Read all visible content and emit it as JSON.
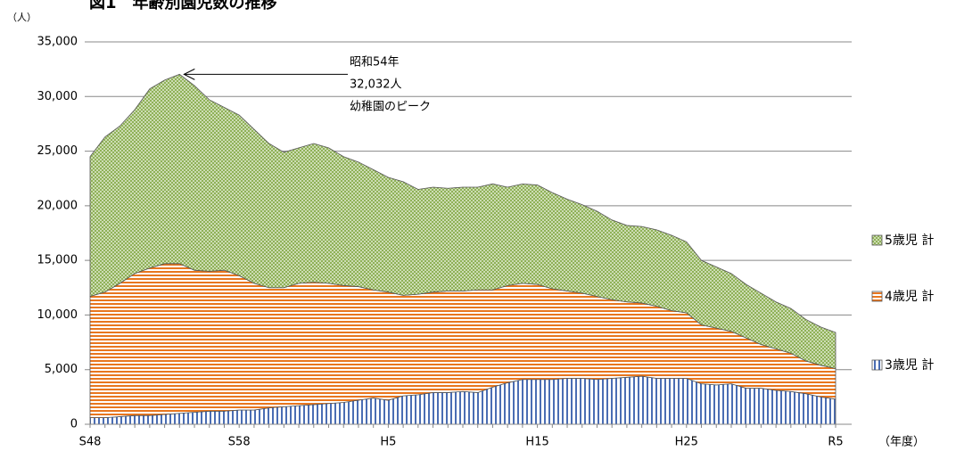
{
  "chart_data": {
    "type": "stacked_area",
    "title": "図1　年齢別園児数の推移",
    "y_label": "（人）",
    "x_label": "（年度）",
    "annotation": [
      "昭和54年",
      "32,032人",
      "幼稚園のピーク"
    ],
    "categories": [
      "S48",
      null,
      null,
      null,
      null,
      null,
      null,
      null,
      null,
      null,
      "S58",
      null,
      null,
      null,
      null,
      null,
      null,
      null,
      null,
      null,
      "H5",
      null,
      null,
      null,
      null,
      null,
      null,
      null,
      null,
      null,
      "H15",
      null,
      null,
      null,
      null,
      null,
      null,
      null,
      null,
      null,
      "H25",
      null,
      null,
      null,
      null,
      null,
      null,
      null,
      null,
      null,
      "R5"
    ],
    "series": [
      {
        "name": "3歳児 計",
        "color": "#4a6db3",
        "values": [
          600,
          600,
          700,
          800,
          800,
          900,
          1000,
          1100,
          1200,
          1200,
          1300,
          1300,
          1500,
          1600,
          1700,
          1800,
          1900,
          2000,
          2200,
          2400,
          2200,
          2600,
          2700,
          2900,
          2900,
          3000,
          2900,
          3400,
          3800,
          4100,
          4100,
          4100,
          4200,
          4200,
          4100,
          4200,
          4300,
          4400,
          4200,
          4200,
          4200,
          3700,
          3600,
          3700,
          3300,
          3300,
          3100,
          3000,
          2800,
          2500,
          2300
        ]
      },
      {
        "name": "4歳児 計",
        "color": "#e8761e",
        "values": [
          11100,
          11500,
          12200,
          13000,
          13500,
          13800,
          13700,
          13000,
          12800,
          12900,
          12300,
          11600,
          11000,
          10900,
          11200,
          11200,
          11000,
          10700,
          10400,
          9900,
          9900,
          9200,
          9200,
          9200,
          9300,
          9200,
          9400,
          8900,
          8900,
          8800,
          8700,
          8300,
          8000,
          7800,
          7600,
          7200,
          6900,
          6700,
          6600,
          6200,
          6000,
          5400,
          5200,
          4800,
          4600,
          4000,
          3800,
          3500,
          3000,
          2900,
          2800
        ]
      },
      {
        "name": "5歳児 計",
        "color": "#8fb157",
        "values": [
          12800,
          14200,
          14400,
          15000,
          16400,
          16800,
          17332,
          16900,
          15700,
          14900,
          14700,
          14100,
          13200,
          12400,
          12400,
          12700,
          12400,
          11800,
          11400,
          11000,
          10500,
          10400,
          9600,
          9600,
          9400,
          9500,
          9400,
          9700,
          9000,
          9100,
          9100,
          8800,
          8400,
          8100,
          7800,
          7300,
          7000,
          7000,
          7000,
          6900,
          6500,
          5900,
          5600,
          5300,
          4900,
          4700,
          4300,
          4100,
          3800,
          3500,
          3300
        ]
      }
    ],
    "ylim": [
      0,
      35000
    ],
    "yticks": [
      0,
      {
        "value": 5000,
        "label": "5,000"
      },
      {
        "value": 10000,
        "label": "10,000"
      },
      {
        "value": 15000,
        "label": "15,000"
      },
      {
        "value": 20000,
        "label": "20,000"
      },
      {
        "value": 25000,
        "label": "25,000"
      },
      {
        "value": 30000,
        "label": "30,000"
      },
      {
        "value": 35000,
        "label": "35,000"
      }
    ],
    "grid": true,
    "legend": "right"
  }
}
